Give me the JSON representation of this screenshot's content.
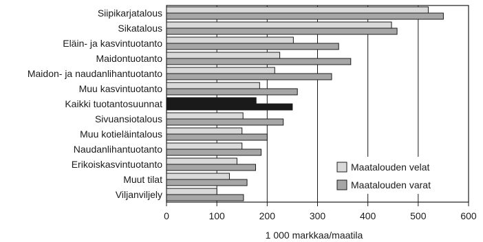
{
  "chart_data": {
    "type": "bar",
    "orientation": "horizontal",
    "categories": [
      "Siipikarjatalous",
      "Sikatalous",
      "Eläin- ja kasvintuotanto",
      "Maidontuotanto",
      "Maidon- ja naudanlihantuotanto",
      "Muu kasvintuotanto",
      "Kaikki tuotantosuunnat",
      "Sivuansiotalous",
      "Muu kotieläintalous",
      "Naudanlihantuotanto",
      "Erikoiskasvintuotanto",
      "Muut tilat",
      "Viljanviljely"
    ],
    "series": [
      {
        "name": "Maatalouden velat",
        "color": "#d9d9d9",
        "values": [
          520,
          447,
          252,
          225,
          215,
          185,
          178,
          152,
          150,
          150,
          140,
          125,
          100
        ]
      },
      {
        "name": "Maatalouden varat",
        "color": "#a6a6a6",
        "values": [
          550,
          458,
          342,
          366,
          328,
          260,
          250,
          232,
          200,
          188,
          177,
          160,
          153
        ]
      }
    ],
    "highlight_category": "Kaikki tuotantosuunnat",
    "highlight_color": "#1a1a1a",
    "xlabel": "1 000 markkaa/maatila",
    "ylabel": "",
    "xlim": [
      0,
      600
    ],
    "xticks": [
      0,
      100,
      200,
      300,
      400,
      500,
      600
    ],
    "grid": "vertical",
    "legend_position": "lower-right"
  }
}
